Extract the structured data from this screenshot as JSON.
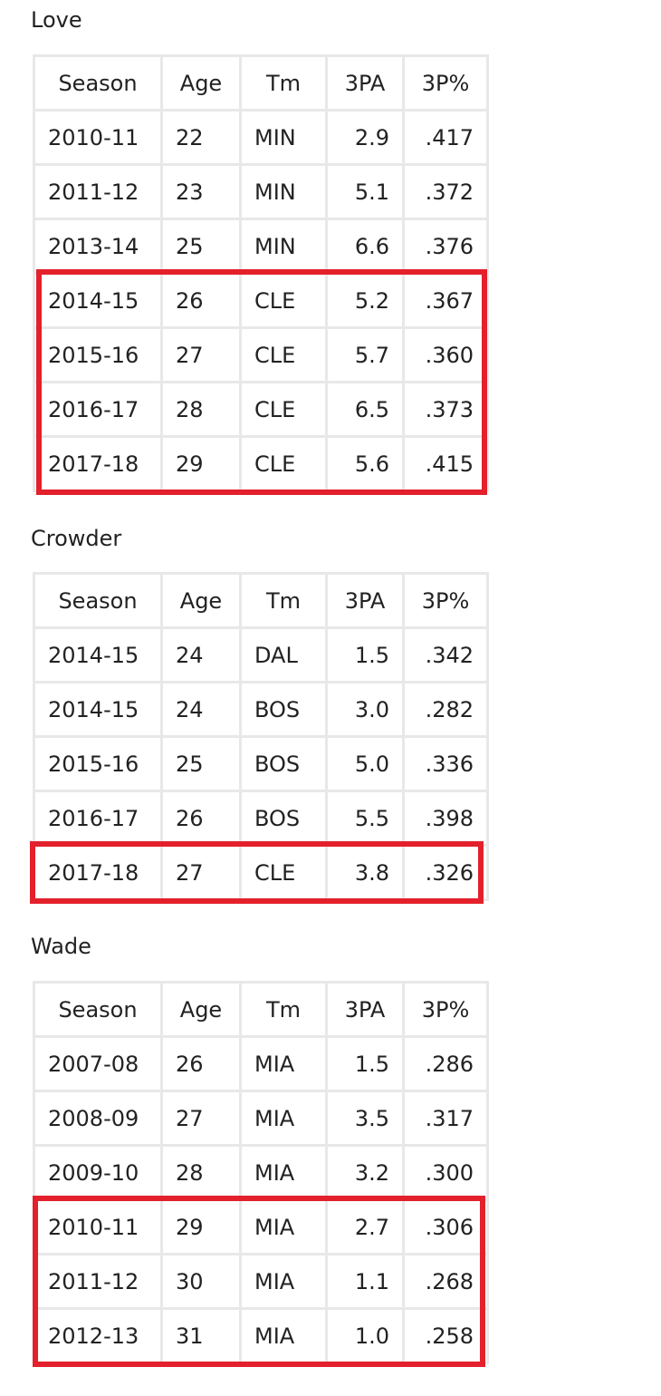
{
  "tables": [
    {
      "title": "Love",
      "header": [
        "Season",
        "Age",
        "Tm",
        "3PA",
        "3P%"
      ],
      "rows": [
        [
          "2010-11",
          "22",
          "MIN",
          "2.9",
          ".417"
        ],
        [
          "2011-12",
          "23",
          "MIN",
          "5.1",
          ".372"
        ],
        [
          "2013-14",
          "25",
          "MIN",
          "6.6",
          ".376"
        ],
        [
          "2014-15",
          "26",
          "CLE",
          "5.2",
          ".367"
        ],
        [
          "2015-16",
          "27",
          "CLE",
          "5.7",
          ".360"
        ],
        [
          "2016-17",
          "28",
          "CLE",
          "6.5",
          ".373"
        ],
        [
          "2017-18",
          "29",
          "CLE",
          "5.6",
          ".415"
        ]
      ]
    },
    {
      "title": "Crowder",
      "header": [
        "Season",
        "Age",
        "Tm",
        "3PA",
        "3P%"
      ],
      "rows": [
        [
          "2014-15",
          "24",
          "DAL",
          "1.5",
          ".342"
        ],
        [
          "2014-15",
          "24",
          "BOS",
          "3.0",
          ".282"
        ],
        [
          "2015-16",
          "25",
          "BOS",
          "5.0",
          ".336"
        ],
        [
          "2016-17",
          "26",
          "BOS",
          "5.5",
          ".398"
        ],
        [
          "2017-18",
          "27",
          "CLE",
          "3.8",
          ".326"
        ]
      ]
    },
    {
      "title": "Wade",
      "header": [
        "Season",
        "Age",
        "Tm",
        "3PA",
        "3P%"
      ],
      "rows": [
        [
          "2007-08",
          "26",
          "MIA",
          "1.5",
          ".286"
        ],
        [
          "2008-09",
          "27",
          "MIA",
          "3.5",
          ".317"
        ],
        [
          "2009-10",
          "28",
          "MIA",
          "3.2",
          ".300"
        ],
        [
          "2010-11",
          "29",
          "MIA",
          "2.7",
          ".306"
        ],
        [
          "2011-12",
          "30",
          "MIA",
          "1.1",
          ".268"
        ],
        [
          "2012-13",
          "31",
          "MIA",
          "1.0",
          ".258"
        ]
      ]
    }
  ]
}
